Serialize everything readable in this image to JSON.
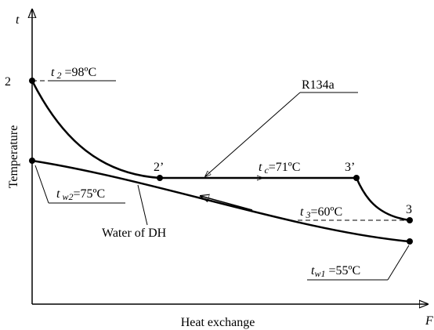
{
  "axes": {
    "y_symbol": "t",
    "x_symbol": "F",
    "y_title": "Temperature",
    "x_title": "Heat exchange"
  },
  "points": [
    "2",
    "2’",
    "3’",
    "3"
  ],
  "curves": {
    "refrigerant": "R134a",
    "water": "Water of DH"
  },
  "annotations": [
    {
      "symbol": "t",
      "sub": " 2",
      "rest": " =98ºC"
    },
    {
      "symbol": "t",
      "sub": " c",
      "rest": "=71ºC"
    },
    {
      "symbol": "t",
      "sub": " 3",
      "rest": "=60ºC"
    },
    {
      "symbol": "t",
      "sub": " w2",
      "rest": "=75ºC"
    },
    {
      "symbol": "t",
      "sub": "w1",
      "rest": " =55ºC"
    }
  ]
}
